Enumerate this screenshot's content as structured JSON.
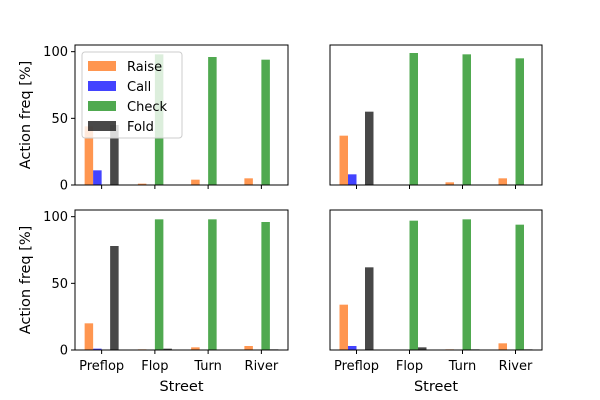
{
  "figure": {
    "xlabel": "Street",
    "ylabel": "Action freq [%]"
  },
  "legend": {
    "placement": "upper-left",
    "entries": [
      {
        "name": "Raise",
        "color": "#ff7f2a"
      },
      {
        "name": "Call",
        "color": "#1a1aff"
      },
      {
        "name": "Check",
        "color": "#2a962a"
      },
      {
        "name": "Fold",
        "color": "#202020"
      }
    ]
  },
  "chart_data": [
    {
      "type": "bar",
      "categories": [
        "Preflop",
        "Flop",
        "Turn",
        "River"
      ],
      "ylim": [
        0,
        105
      ],
      "yticks": [
        0,
        50,
        100
      ],
      "ylabel": "Action freq [%]",
      "xlabel": "",
      "series": [
        {
          "name": "Raise",
          "values": [
            44,
            1,
            4,
            5
          ]
        },
        {
          "name": "Call",
          "values": [
            11,
            0,
            0,
            0
          ]
        },
        {
          "name": "Check",
          "values": [
            0,
            98,
            96,
            94
          ]
        },
        {
          "name": "Fold",
          "values": [
            45,
            0,
            0,
            0
          ]
        }
      ]
    },
    {
      "type": "bar",
      "categories": [
        "Preflop",
        "Flop",
        "Turn",
        "River"
      ],
      "ylim": [
        0,
        105
      ],
      "yticks": [],
      "ylabel": "",
      "xlabel": "",
      "series": [
        {
          "name": "Raise",
          "values": [
            37,
            0,
            2,
            5
          ]
        },
        {
          "name": "Call",
          "values": [
            8,
            0,
            0,
            0
          ]
        },
        {
          "name": "Check",
          "values": [
            0,
            99,
            98,
            95
          ]
        },
        {
          "name": "Fold",
          "values": [
            55,
            0,
            0,
            0
          ]
        }
      ]
    },
    {
      "type": "bar",
      "categories": [
        "Preflop",
        "Flop",
        "Turn",
        "River"
      ],
      "ylim": [
        0,
        105
      ],
      "yticks": [
        0,
        50,
        100
      ],
      "ylabel": "Action freq [%]",
      "xlabel": "Street",
      "series": [
        {
          "name": "Raise",
          "values": [
            20,
            0.5,
            2,
            3
          ]
        },
        {
          "name": "Call",
          "values": [
            1,
            0,
            0,
            0
          ]
        },
        {
          "name": "Check",
          "values": [
            0,
            98,
            98,
            96
          ]
        },
        {
          "name": "Fold",
          "values": [
            78,
            1,
            0,
            0.5
          ]
        }
      ]
    },
    {
      "type": "bar",
      "categories": [
        "Preflop",
        "Flop",
        "Turn",
        "River"
      ],
      "ylim": [
        0,
        105
      ],
      "yticks": [],
      "ylabel": "",
      "xlabel": "Street",
      "series": [
        {
          "name": "Raise",
          "values": [
            34,
            0,
            0.5,
            5
          ]
        },
        {
          "name": "Call",
          "values": [
            3,
            0,
            0,
            0
          ]
        },
        {
          "name": "Check",
          "values": [
            0,
            97,
            98,
            94
          ]
        },
        {
          "name": "Fold",
          "values": [
            62,
            2,
            0.5,
            0.5
          ]
        }
      ]
    }
  ]
}
